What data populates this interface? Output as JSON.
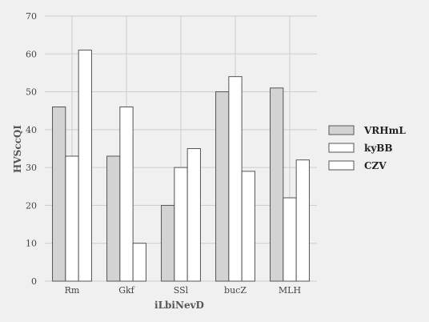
{
  "chart_data": {
    "type": "bar",
    "title": "",
    "xlabel": "iLbiNevD",
    "ylabel": "HVSccQI",
    "categories": [
      "Rm",
      "Gkf",
      "SSl",
      "bucZ",
      "MLH"
    ],
    "series": [
      {
        "name": "VRHmL",
        "values": [
          46,
          33,
          20,
          50,
          51
        ],
        "color": "#d3d3d3"
      },
      {
        "name": "kyBB",
        "values": [
          33,
          46,
          30,
          54,
          22
        ],
        "color": "#ffffff"
      },
      {
        "name": "CZV",
        "values": [
          61,
          10,
          35,
          29,
          32
        ],
        "color": "#ffffff"
      }
    ],
    "ylim": [
      0,
      70
    ],
    "yticks": [
      0,
      10,
      20,
      30,
      40,
      50,
      60,
      70
    ],
    "grid": true,
    "legend_position": "right",
    "bar_edge_color": "#555555",
    "grid_color": "#cccccc",
    "background_color": "#f0f0f0"
  }
}
